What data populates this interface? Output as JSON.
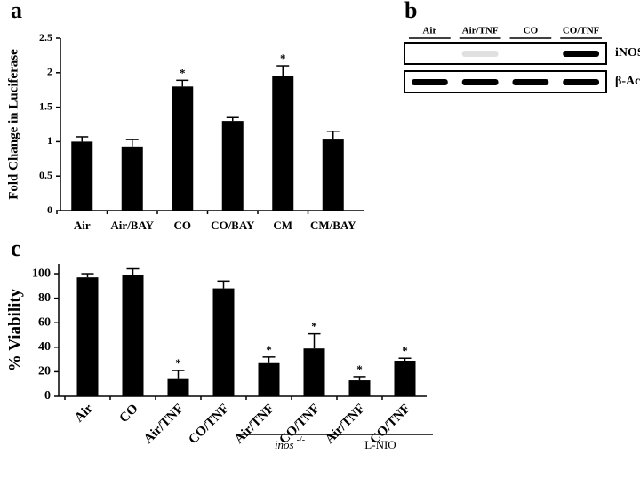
{
  "chart_data": [
    {
      "type": "bar",
      "panel": "a",
      "y_label": "Fold Change in Luciferase",
      "categories": [
        "Air",
        "Air/BAY",
        "CO",
        "CO/BAY",
        "CM",
        "CM/BAY"
      ],
      "values": [
        1.0,
        0.93,
        1.8,
        1.3,
        1.95,
        1.03
      ],
      "errors": [
        0.07,
        0.1,
        0.09,
        0.05,
        0.15,
        0.12
      ],
      "significant": [
        false,
        false,
        true,
        false,
        true,
        false
      ],
      "significance_marker": "*",
      "color": "#000000",
      "ylim": [
        0,
        2.5
      ],
      "yticks": [
        0,
        0.5,
        1,
        1.5,
        2,
        2.5
      ]
    },
    {
      "type": "blot",
      "panel": "b",
      "lanes": [
        "Air",
        "Air/TNF",
        "CO",
        "CO/TNF"
      ],
      "rows": [
        "iNOS",
        "β-Actin"
      ]
    },
    {
      "type": "bar",
      "panel": "c",
      "y_label": "% Viability",
      "categories": [
        "Air",
        "CO",
        "Air/TNF",
        "CO/TNF",
        "Air/TNF",
        "CO/TNF",
        "Air/TNF",
        "CO/TNF"
      ],
      "values": [
        97,
        99,
        14,
        88,
        27,
        39,
        13,
        29
      ],
      "errors": [
        3,
        5,
        7,
        6,
        5,
        12,
        3,
        2
      ],
      "significant": [
        false,
        false,
        true,
        false,
        true,
        true,
        true,
        true
      ],
      "significance_marker": "*",
      "color": "#000000",
      "groups": [
        {
          "label": "inos",
          "superscript": "-/-",
          "categories": [
            4,
            5
          ]
        },
        {
          "label": "L-NIO",
          "categories": [
            6,
            7
          ]
        }
      ],
      "ylim": [
        0,
        108
      ],
      "yticks": [
        0,
        20,
        40,
        60,
        80,
        100
      ]
    }
  ]
}
